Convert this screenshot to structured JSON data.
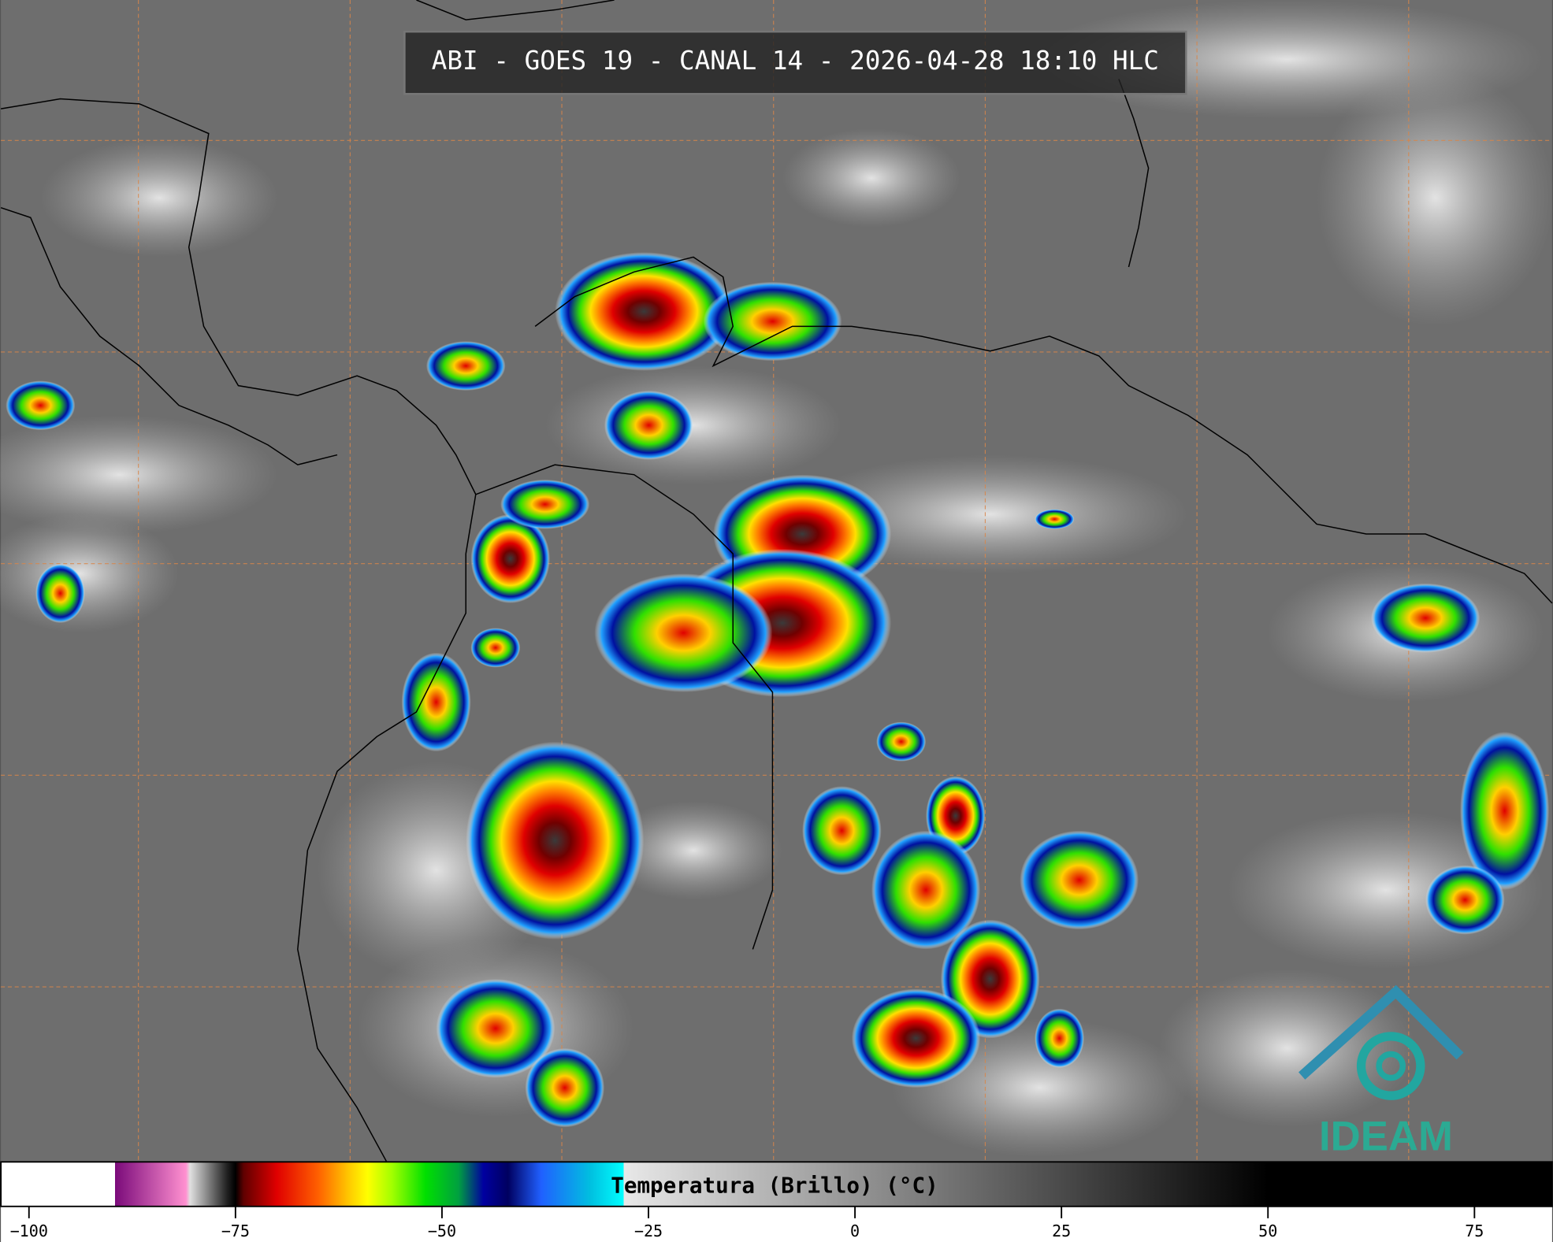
{
  "header": {
    "title": "ABI - GOES 19 - CANAL 14 - 2026-04-28 18:10 HLC"
  },
  "logo": {
    "text": "IDEAM"
  },
  "colorbar": {
    "label": "Temperatura (Brillo) (°C)",
    "xlim": [
      -103.4,
      84.4
    ],
    "xticks": [
      {
        "value": -100,
        "label": "−100"
      },
      {
        "value": -75,
        "label": "−75"
      },
      {
        "value": -50,
        "label": "−50"
      },
      {
        "value": -25,
        "label": "−25"
      },
      0,
      25,
      50,
      75
    ],
    "color_stops": [
      {
        "value": -103.4,
        "color": "#ffffff"
      },
      {
        "value": -89.6,
        "color": "#ffffff"
      },
      {
        "value": -89.6,
        "color": "#7a0a7a"
      },
      {
        "value": -81,
        "color": "#ff90d0"
      },
      {
        "value": -80.5,
        "color": "#e0e0e0"
      },
      {
        "value": -76,
        "color": "#202020"
      },
      {
        "value": -75,
        "color": "#000000"
      },
      {
        "value": -74,
        "color": "#600000"
      },
      {
        "value": -70,
        "color": "#e00000"
      },
      {
        "value": -65,
        "color": "#ff6000"
      },
      {
        "value": -61,
        "color": "#ffd000"
      },
      {
        "value": -59,
        "color": "#ffff00"
      },
      {
        "value": -56,
        "color": "#a0ff00"
      },
      {
        "value": -52,
        "color": "#00e000"
      },
      {
        "value": -48,
        "color": "#00a040"
      },
      {
        "value": -45,
        "color": "#0000a0"
      },
      {
        "value": -42,
        "color": "#000060"
      },
      {
        "value": -38,
        "color": "#2060ff"
      },
      {
        "value": -32,
        "color": "#00c0e0"
      },
      {
        "value": -28,
        "color": "#00ffff"
      },
      {
        "value": -28,
        "color": "#e8e8e8"
      },
      {
        "value": 50,
        "color": "#000000"
      },
      {
        "value": 84.4,
        "color": "#000000"
      }
    ]
  }
}
